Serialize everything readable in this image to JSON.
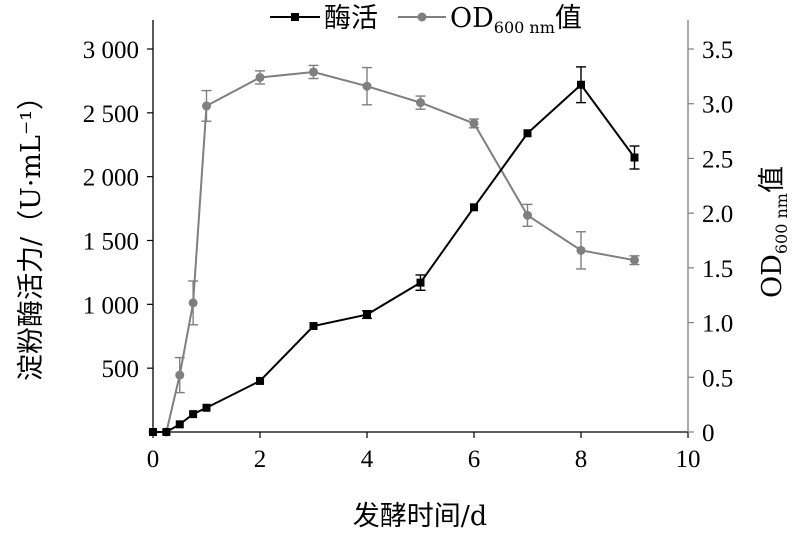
{
  "chart_data": {
    "type": "line",
    "xlabel": "发酵时间/d",
    "xlim": [
      0,
      10
    ],
    "x_ticks": [
      "0",
      "2",
      "4",
      "6",
      "8",
      "10"
    ],
    "ylabel_left": "淀粉酶活力/（U·mL⁻¹）",
    "ylim_left": [
      0,
      3000
    ],
    "y_ticks_left": [
      "500",
      "1 000",
      "1 500",
      "2 000",
      "2 500",
      "3 000"
    ],
    "ylabel_right": {
      "main": "OD",
      "sub": "600 nm",
      "suffix": "值"
    },
    "ylim_right": [
      0,
      3.5
    ],
    "y_ticks_right": [
      "0",
      "0.5",
      "1.0",
      "1.5",
      "2.0",
      "2.5",
      "3.0",
      "3.5"
    ],
    "grid": false,
    "legend_position": "top",
    "series": [
      {
        "name": "酶活",
        "axis": "left",
        "color": "#000000",
        "marker": "square",
        "x": [
          0,
          0.25,
          0.5,
          0.75,
          1,
          2,
          3,
          4,
          5,
          6,
          7,
          8,
          9
        ],
        "y": [
          0,
          0,
          60,
          140,
          190,
          400,
          830,
          920,
          1170,
          1760,
          2340,
          2720,
          2150
        ],
        "error": [
          0,
          0,
          0,
          0,
          0,
          0,
          0,
          30,
          60,
          0,
          0,
          140,
          90
        ]
      },
      {
        "name": {
          "main": "OD",
          "sub": "600 nm",
          "suffix": "值"
        },
        "axis": "right",
        "color": "#7f7f7f",
        "marker": "circle",
        "x": [
          0,
          0.25,
          0.5,
          0.75,
          1,
          2,
          3,
          4,
          5,
          6,
          7,
          8,
          9
        ],
        "y": [
          0,
          0,
          0.52,
          1.18,
          2.98,
          3.24,
          3.29,
          3.16,
          3.01,
          2.82,
          1.98,
          1.66,
          1.57
        ],
        "error": [
          0,
          0,
          0.16,
          0.2,
          0.14,
          0.06,
          0.06,
          0.17,
          0.06,
          0.04,
          0.1,
          0.17,
          0.04
        ]
      }
    ]
  }
}
